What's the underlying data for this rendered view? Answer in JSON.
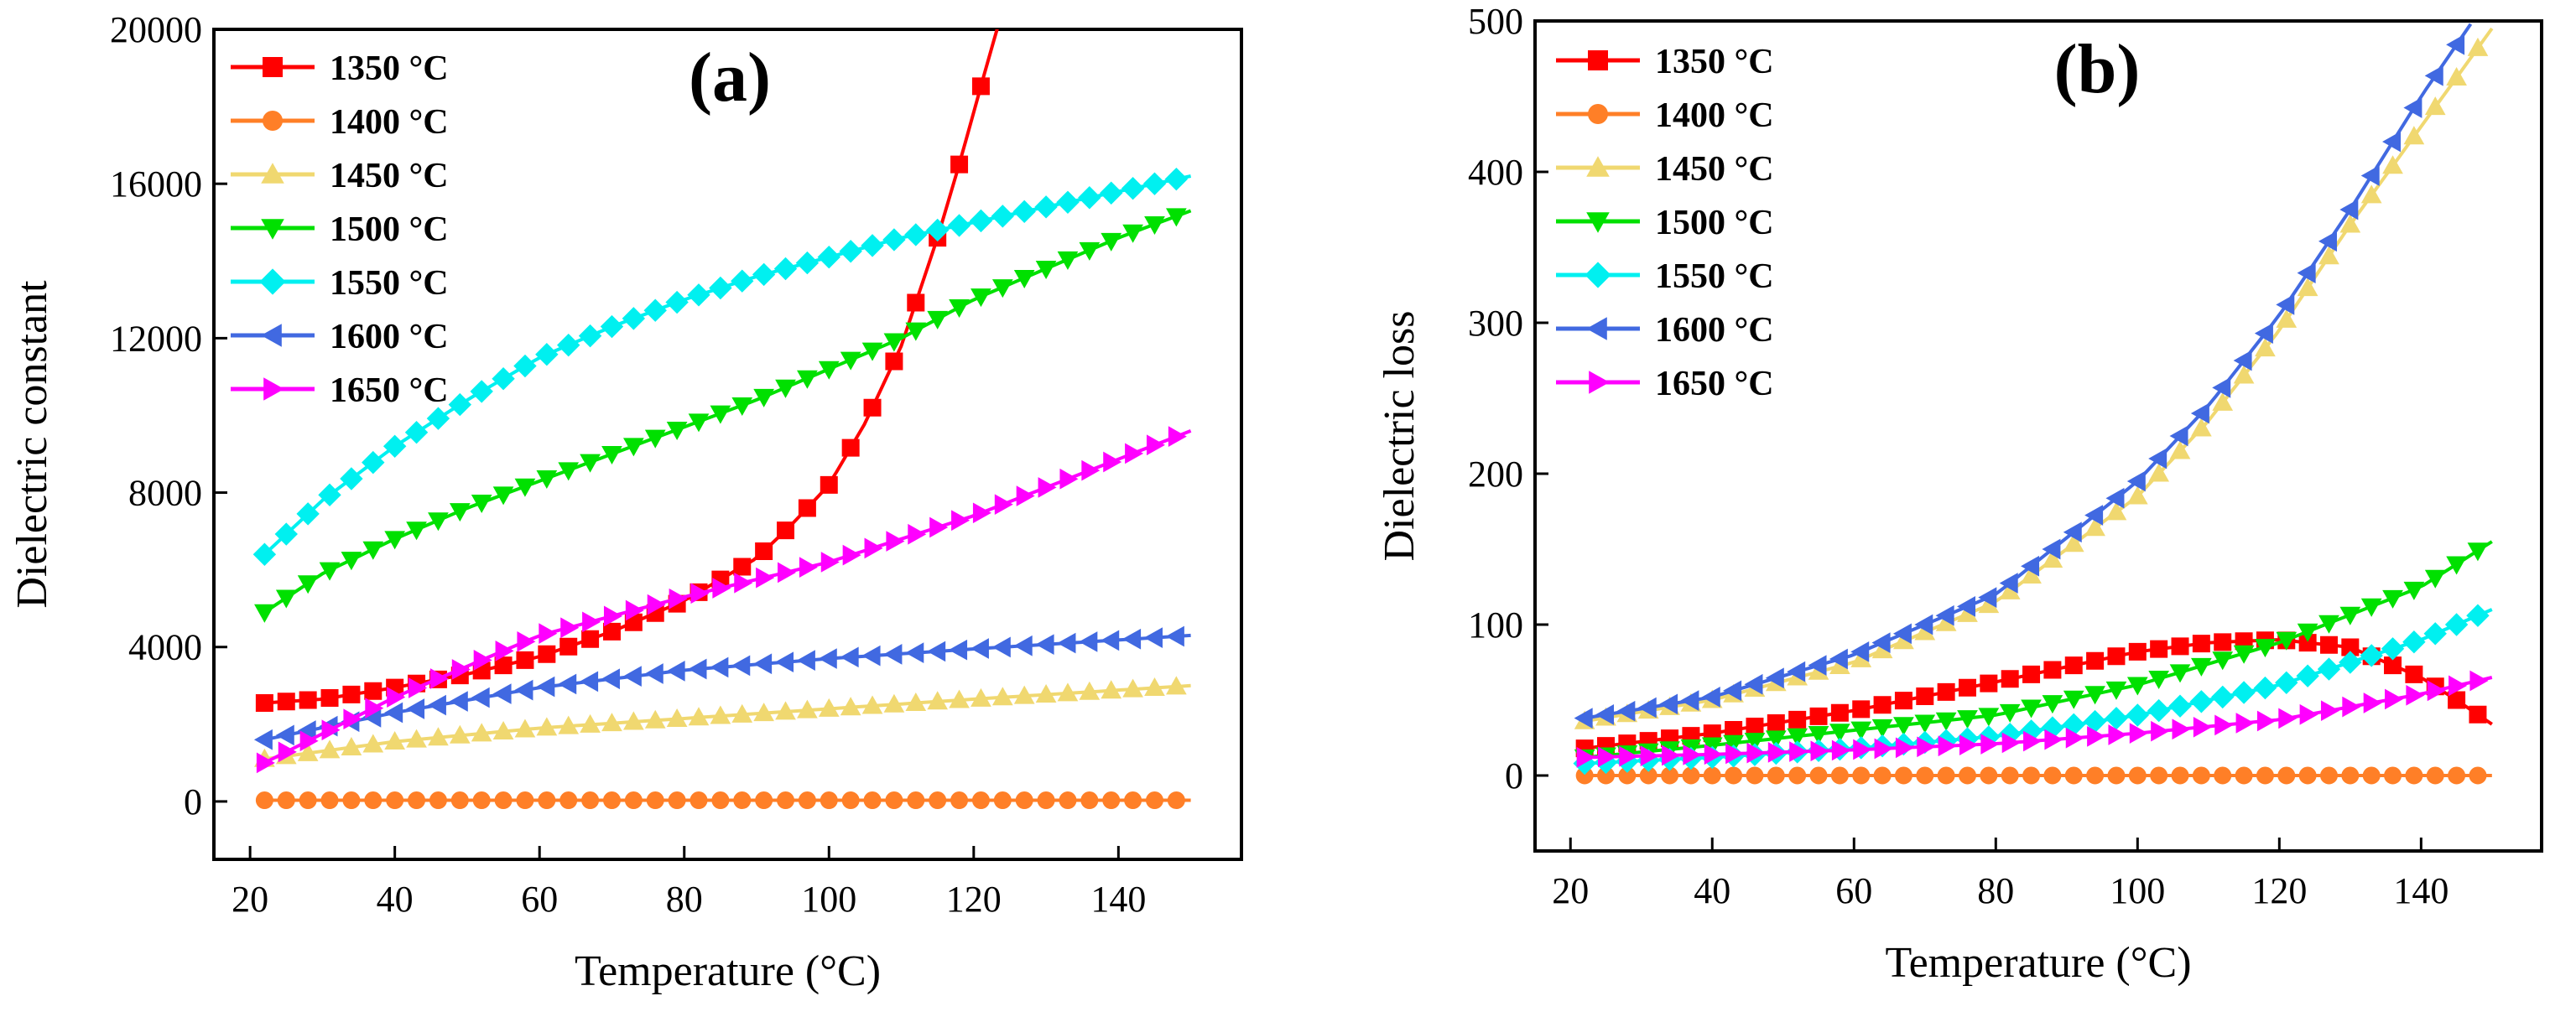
{
  "chart_data": [
    {
      "type": "line",
      "panel_label": "(a)",
      "xlabel": "Temperature (°C)",
      "ylabel": "Dielectric constant",
      "xlim": [
        15,
        157
      ],
      "ylim": [
        -1500,
        20000
      ],
      "xticks": [
        20,
        40,
        60,
        80,
        100,
        120,
        140
      ],
      "yticks": [
        0,
        4000,
        8000,
        12000,
        16000,
        20000
      ],
      "legend_position": "top-left",
      "grid": false,
      "series": [
        {
          "name": "1350 °C",
          "color": "#ff0000",
          "marker": "square",
          "x": [
            22,
            30,
            40,
            50,
            60,
            70,
            80,
            90,
            95,
            100,
            105,
            110,
            115,
            118,
            122,
            124
          ],
          "y": [
            2550,
            2650,
            2950,
            3300,
            3750,
            4400,
            5200,
            6300,
            7200,
            8200,
            9800,
            11800,
            14600,
            16500,
            19200,
            20500
          ]
        },
        {
          "name": "1400 °C",
          "color": "#ff7f27",
          "marker": "circle",
          "x": [
            22,
            40,
            60,
            80,
            100,
            120,
            150
          ],
          "y": [
            30,
            30,
            30,
            30,
            30,
            30,
            30
          ]
        },
        {
          "name": "1450 °C",
          "color": "#f0d870",
          "marker": "triangle-up",
          "x": [
            22,
            40,
            60,
            80,
            100,
            120,
            150
          ],
          "y": [
            1100,
            1550,
            1900,
            2150,
            2400,
            2650,
            3000
          ]
        },
        {
          "name": "1500 °C",
          "color": "#00e000",
          "marker": "triangle-down",
          "x": [
            22,
            30,
            40,
            50,
            60,
            70,
            80,
            90,
            100,
            110,
            120,
            130,
            140,
            150
          ],
          "y": [
            4900,
            5900,
            6800,
            7600,
            8300,
            9000,
            9700,
            10400,
            11200,
            12000,
            13000,
            13800,
            14600,
            15300
          ]
        },
        {
          "name": "1550 °C",
          "color": "#00f0f0",
          "marker": "diamond",
          "x": [
            22,
            30,
            40,
            50,
            60,
            70,
            80,
            90,
            100,
            110,
            120,
            130,
            140,
            150
          ],
          "y": [
            6400,
            7800,
            9200,
            10400,
            11500,
            12300,
            13000,
            13600,
            14100,
            14600,
            15000,
            15400,
            15800,
            16200
          ]
        },
        {
          "name": "1600 °C",
          "color": "#4169e1",
          "marker": "triangle-left",
          "x": [
            22,
            40,
            60,
            80,
            100,
            120,
            150
          ],
          "y": [
            1600,
            2300,
            2950,
            3400,
            3700,
            3950,
            4300
          ]
        },
        {
          "name": "1650 °C",
          "color": "#ff00ff",
          "marker": "triangle-right",
          "x": [
            22,
            40,
            60,
            80,
            100,
            120,
            150
          ],
          "y": [
            1000,
            2700,
            4300,
            5300,
            6200,
            7400,
            9600
          ]
        }
      ]
    },
    {
      "type": "line",
      "panel_label": "(b)",
      "xlabel": "Temperature (°C)",
      "ylabel": "Dielectric loss",
      "xlim": [
        15,
        157
      ],
      "ylim": [
        -50,
        500
      ],
      "xticks": [
        20,
        40,
        60,
        80,
        100,
        120,
        140
      ],
      "yticks": [
        0,
        100,
        200,
        300,
        400,
        500
      ],
      "legend_position": "top-left",
      "grid": false,
      "series": [
        {
          "name": "1350 °C",
          "color": "#ff0000",
          "marker": "square",
          "x": [
            22,
            40,
            60,
            80,
            100,
            110,
            120,
            130,
            140,
            145,
            150
          ],
          "y": [
            18,
            28,
            43,
            62,
            82,
            88,
            90,
            85,
            65,
            50,
            34
          ]
        },
        {
          "name": "1400 °C",
          "color": "#ff7f27",
          "marker": "circle",
          "x": [
            22,
            40,
            60,
            80,
            100,
            120,
            150
          ],
          "y": [
            0,
            0,
            0,
            0,
            0,
            0,
            0
          ]
        },
        {
          "name": "1450 °C",
          "color": "#f0d870",
          "marker": "triangle-up",
          "x": [
            22,
            40,
            60,
            80,
            100,
            110,
            120,
            130,
            140,
            150
          ],
          "y": [
            36,
            50,
            75,
            115,
            185,
            235,
            295,
            365,
            430,
            495
          ]
        },
        {
          "name": "1500 °C",
          "color": "#00e000",
          "marker": "triangle-down",
          "x": [
            22,
            40,
            60,
            80,
            100,
            120,
            140,
            150
          ],
          "y": [
            12,
            20,
            30,
            40,
            60,
            88,
            125,
            155
          ]
        },
        {
          "name": "1550 °C",
          "color": "#00f0f0",
          "marker": "diamond",
          "x": [
            22,
            40,
            60,
            80,
            100,
            120,
            140,
            150
          ],
          "y": [
            8,
            12,
            18,
            26,
            40,
            60,
            90,
            110
          ]
        },
        {
          "name": "1600 °C",
          "color": "#4169e1",
          "marker": "triangle-left",
          "x": [
            22,
            40,
            60,
            80,
            100,
            110,
            120,
            130,
            140,
            147
          ],
          "y": [
            38,
            52,
            80,
            120,
            195,
            245,
            305,
            375,
            450,
            498
          ]
        },
        {
          "name": "1650 °C",
          "color": "#ff00ff",
          "marker": "triangle-right",
          "x": [
            22,
            40,
            60,
            80,
            100,
            120,
            140,
            150
          ],
          "y": [
            12,
            14,
            17,
            21,
            28,
            37,
            54,
            65
          ]
        }
      ]
    }
  ]
}
